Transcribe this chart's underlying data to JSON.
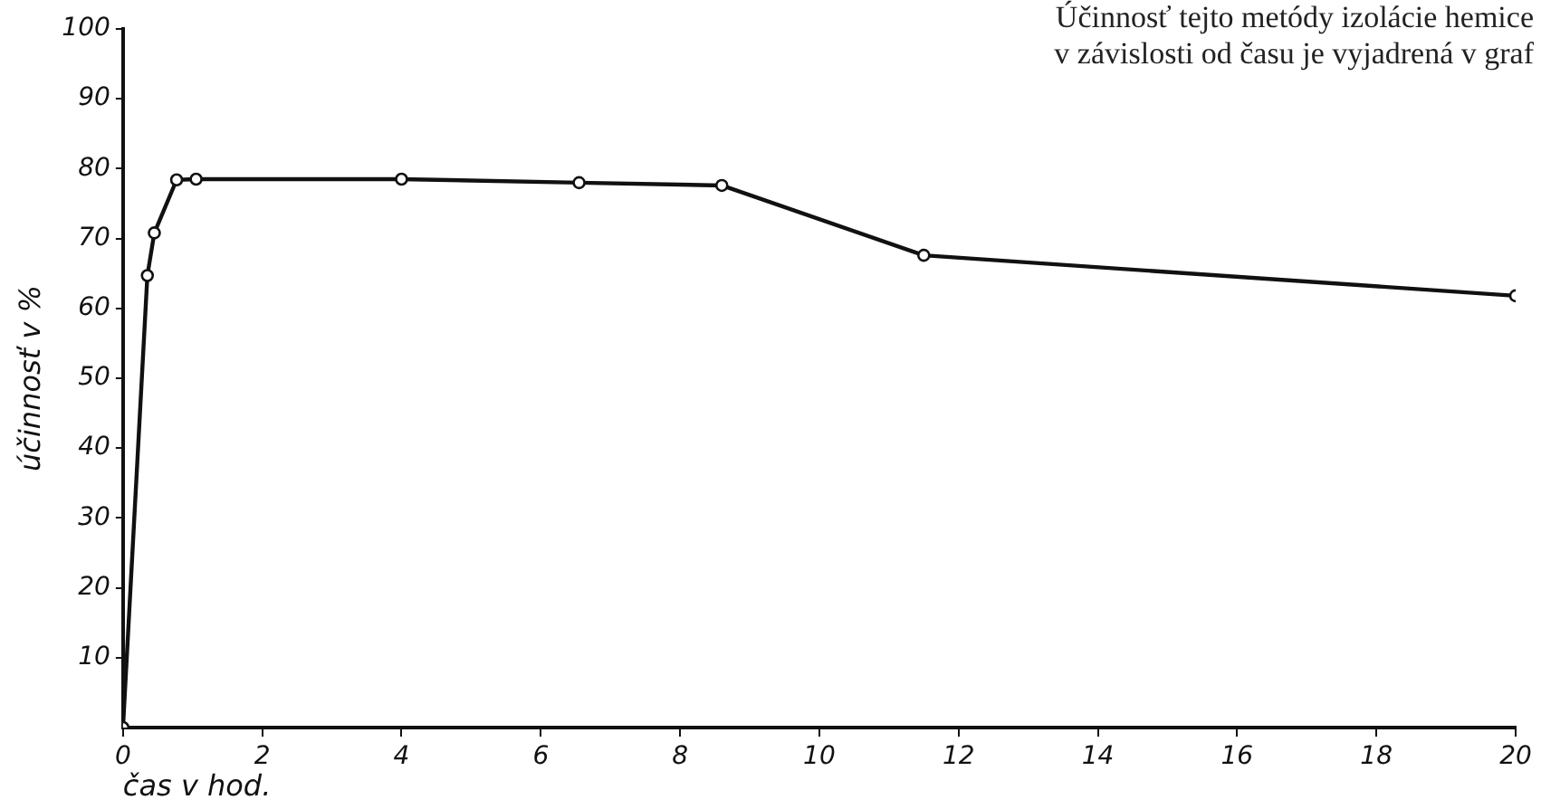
{
  "chart_data": {
    "type": "line",
    "xlabel": "čas v hod.",
    "ylabel": "účinnosť v %",
    "annotations": [
      "Účinnosť tejto metódy izolácie hemice",
      "v závislosti od času je vyjadrená v graf"
    ],
    "x": [
      0,
      0.35,
      0.45,
      0.77,
      1.05,
      4,
      6.55,
      8.6,
      11.5,
      20
    ],
    "series": [
      {
        "color": "#111111",
        "values": [
          0,
          64.7,
          70.8,
          78.4,
          78.5,
          78.5,
          78,
          77.6,
          67.6,
          61.8
        ]
      }
    ],
    "xlim": [
      0,
      20
    ],
    "xticks": [
      0,
      2,
      4,
      6,
      8,
      10,
      12,
      14,
      16,
      18,
      20
    ],
    "ylim": [
      0,
      100
    ],
    "yticks": [
      10,
      20,
      30,
      40,
      50,
      60,
      70,
      80,
      90,
      100
    ],
    "marker": "circle",
    "line_style": "solid",
    "grid": false,
    "legend": false
  }
}
